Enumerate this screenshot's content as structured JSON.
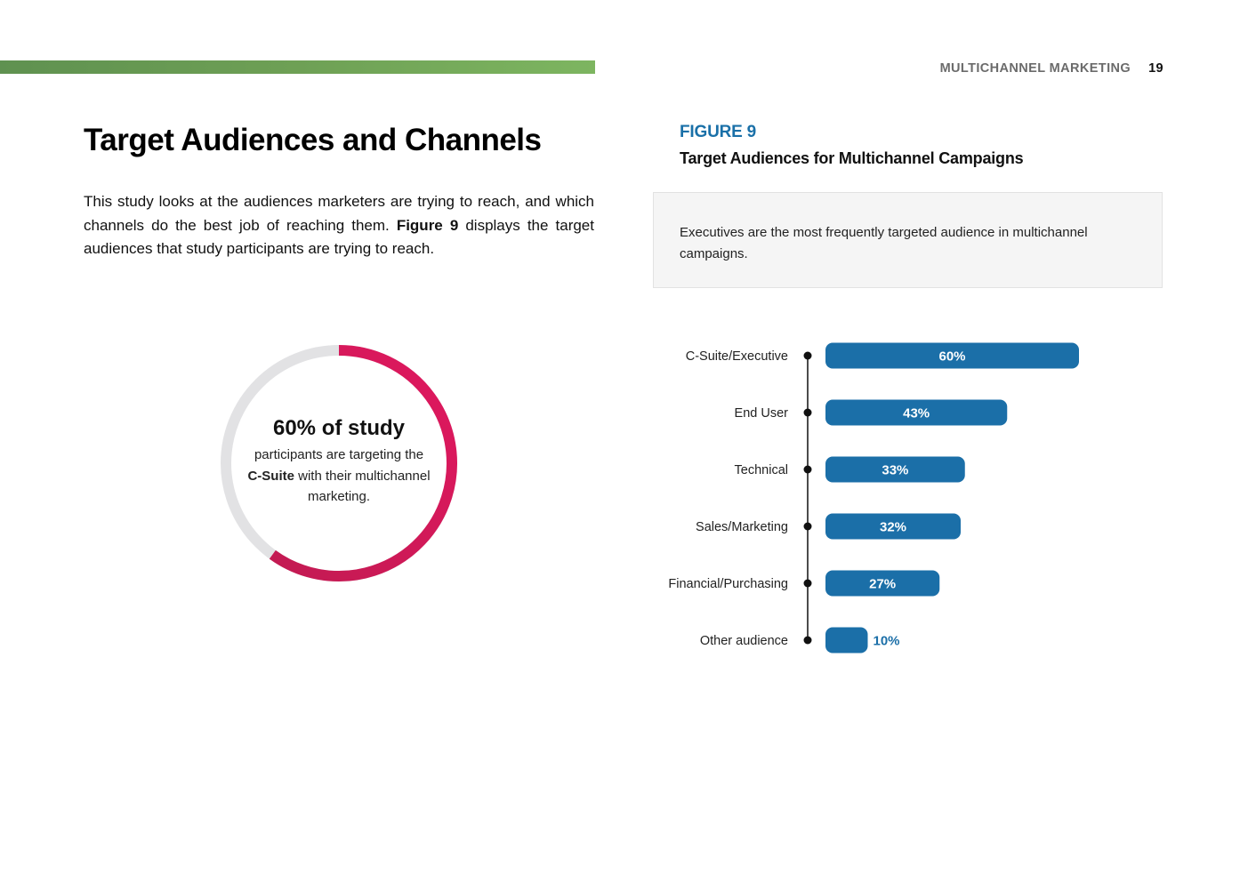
{
  "header": {
    "section_title": "MULTICHANNEL MARKETING",
    "page_number": "19",
    "bar_color": "#6ea055"
  },
  "article": {
    "heading": "Target Audiences and Channels",
    "intro_before": "This study looks at the audiences marketers are trying to reach, and which channels do the best job of reaching them. ",
    "intro_bold": "Figure 9",
    "intro_after": " displays the target audiences that study participants are trying to reach."
  },
  "donut": {
    "percent": 60,
    "headline": "60% of study",
    "body_before": "participants are targeting the ",
    "body_bold": "C-Suite",
    "body_after": " with their multichannel marketing.",
    "colors": {
      "fill": "#e0185f",
      "fill_end": "#c21a52",
      "track": "#e2e2e4"
    }
  },
  "figure": {
    "label": "FIGURE 9",
    "title": "Target Audiences for Multichannel Campaigns",
    "callout": "Executives are the most frequently targeted audience in multichannel campaigns."
  },
  "chart_data": {
    "type": "bar",
    "orientation": "horizontal",
    "categories": [
      "C-Suite/Executive",
      "End User",
      "Technical",
      "Sales/Marketing",
      "Financial/Purchasing",
      "Other audience"
    ],
    "values": [
      60,
      43,
      33,
      32,
      27,
      10
    ],
    "value_labels": [
      "60%",
      "43%",
      "33%",
      "32%",
      "27%",
      "10%"
    ],
    "unit": "%",
    "bar_color": "#1b6fa8",
    "label_color_inside": "#ffffff",
    "label_color_outside": "#1b6fa8",
    "grid": false,
    "legend": "none"
  }
}
